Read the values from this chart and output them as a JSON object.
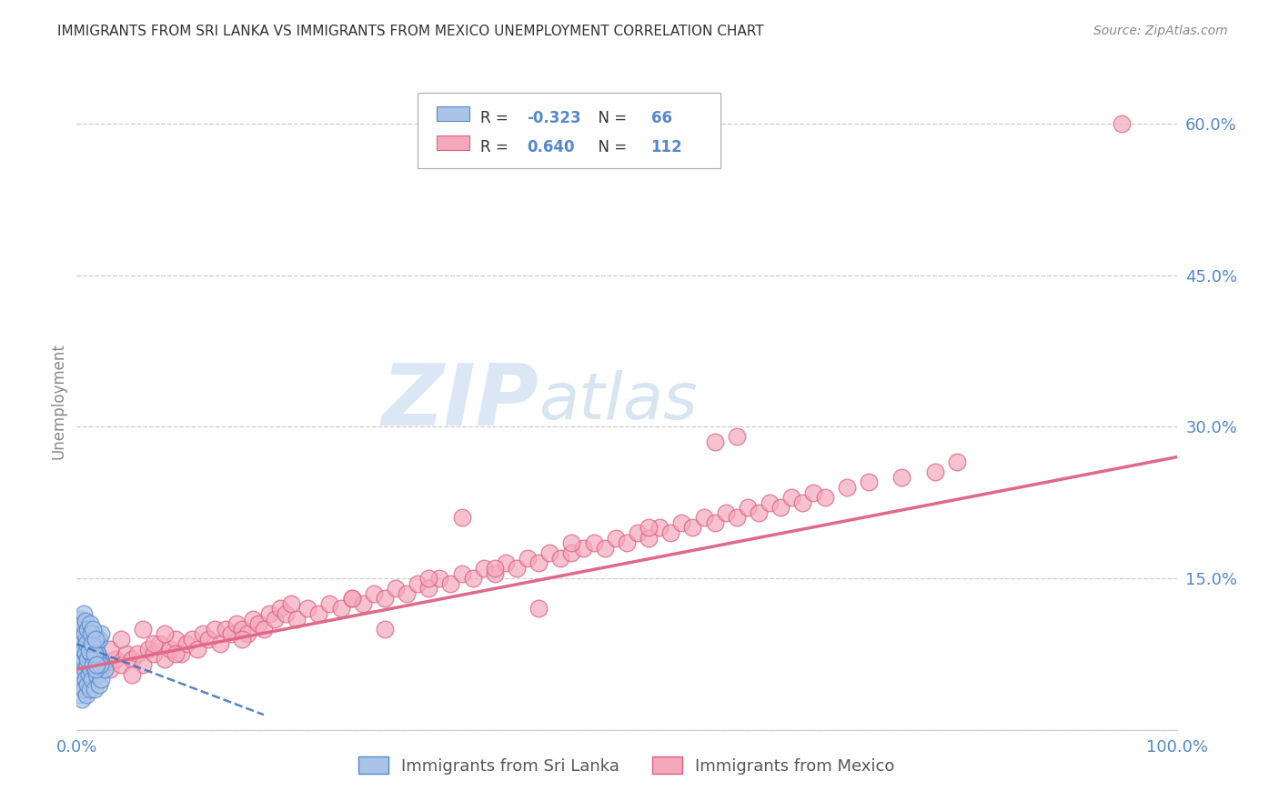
{
  "title": "IMMIGRANTS FROM SRI LANKA VS IMMIGRANTS FROM MEXICO UNEMPLOYMENT CORRELATION CHART",
  "source": "Source: ZipAtlas.com",
  "ylabel": "Unemployment",
  "xlim": [
    0.0,
    1.0
  ],
  "ylim": [
    0.0,
    0.65
  ],
  "y_ticks": [
    0.0,
    0.15,
    0.3,
    0.45,
    0.6
  ],
  "y_tick_labels": [
    "",
    "15.0%",
    "30.0%",
    "45.0%",
    "60.0%"
  ],
  "sri_lanka_color": "#aac4e8",
  "sri_lanka_edge": "#5588cc",
  "mexico_color": "#f5a8bc",
  "mexico_edge": "#d96080",
  "sri_lanka_R": -0.323,
  "sri_lanka_N": 66,
  "mexico_R": 0.64,
  "mexico_N": 112,
  "sri_lanka_line_color": "#4477bb",
  "mexico_line_color": "#e06888",
  "watermark_zip": "ZIP",
  "watermark_atlas": "atlas",
  "legend_label_sri": "Immigrants from Sri Lanka",
  "legend_label_mex": "Immigrants from Mexico",
  "background_color": "#ffffff",
  "grid_color": "#cccccc",
  "title_color": "#333333",
  "tick_color": "#5588cc",
  "sri_lanka_x": [
    0.002,
    0.003,
    0.004,
    0.005,
    0.005,
    0.006,
    0.006,
    0.007,
    0.007,
    0.008,
    0.008,
    0.009,
    0.009,
    0.01,
    0.01,
    0.011,
    0.011,
    0.012,
    0.013,
    0.014,
    0.015,
    0.016,
    0.017,
    0.018,
    0.019,
    0.02,
    0.021,
    0.022,
    0.023,
    0.025,
    0.003,
    0.004,
    0.005,
    0.006,
    0.007,
    0.008,
    0.009,
    0.01,
    0.011,
    0.012,
    0.013,
    0.014,
    0.015,
    0.016,
    0.017,
    0.018,
    0.019,
    0.02,
    0.021,
    0.022,
    0.003,
    0.004,
    0.005,
    0.006,
    0.007,
    0.008,
    0.009,
    0.01,
    0.011,
    0.012,
    0.013,
    0.014,
    0.015,
    0.016,
    0.017,
    0.018
  ],
  "sri_lanka_y": [
    0.035,
    0.055,
    0.045,
    0.065,
    0.03,
    0.07,
    0.04,
    0.06,
    0.08,
    0.05,
    0.075,
    0.035,
    0.085,
    0.045,
    0.065,
    0.055,
    0.075,
    0.04,
    0.06,
    0.05,
    0.07,
    0.04,
    0.065,
    0.055,
    0.075,
    0.045,
    0.07,
    0.05,
    0.065,
    0.06,
    0.095,
    0.085,
    0.1,
    0.08,
    0.095,
    0.075,
    0.09,
    0.07,
    0.095,
    0.085,
    0.075,
    0.09,
    0.065,
    0.095,
    0.06,
    0.085,
    0.075,
    0.09,
    0.065,
    0.095,
    0.11,
    0.1,
    0.105,
    0.115,
    0.095,
    0.108,
    0.085,
    0.1,
    0.078,
    0.105,
    0.095,
    0.085,
    0.1,
    0.075,
    0.09,
    0.065
  ],
  "mexico_x": [
    0.01,
    0.015,
    0.02,
    0.025,
    0.03,
    0.035,
    0.04,
    0.045,
    0.05,
    0.055,
    0.06,
    0.065,
    0.07,
    0.075,
    0.08,
    0.085,
    0.09,
    0.095,
    0.1,
    0.105,
    0.11,
    0.115,
    0.12,
    0.125,
    0.13,
    0.135,
    0.14,
    0.145,
    0.15,
    0.155,
    0.16,
    0.165,
    0.17,
    0.175,
    0.18,
    0.185,
    0.19,
    0.195,
    0.2,
    0.21,
    0.22,
    0.23,
    0.24,
    0.25,
    0.26,
    0.27,
    0.28,
    0.29,
    0.3,
    0.31,
    0.32,
    0.33,
    0.34,
    0.35,
    0.36,
    0.37,
    0.38,
    0.39,
    0.4,
    0.41,
    0.42,
    0.43,
    0.44,
    0.45,
    0.46,
    0.47,
    0.48,
    0.49,
    0.5,
    0.51,
    0.52,
    0.53,
    0.54,
    0.55,
    0.56,
    0.57,
    0.58,
    0.59,
    0.6,
    0.61,
    0.62,
    0.63,
    0.64,
    0.65,
    0.66,
    0.67,
    0.68,
    0.7,
    0.72,
    0.75,
    0.78,
    0.8,
    0.02,
    0.03,
    0.04,
    0.05,
    0.06,
    0.07,
    0.08,
    0.09,
    0.35,
    0.58,
    0.95,
    0.15,
    0.25,
    0.28,
    0.45,
    0.52,
    0.38,
    0.32,
    0.6,
    0.42
  ],
  "mexico_y": [
    0.05,
    0.06,
    0.055,
    0.065,
    0.06,
    0.07,
    0.065,
    0.075,
    0.07,
    0.075,
    0.065,
    0.08,
    0.075,
    0.085,
    0.07,
    0.08,
    0.09,
    0.075,
    0.085,
    0.09,
    0.08,
    0.095,
    0.09,
    0.1,
    0.085,
    0.1,
    0.095,
    0.105,
    0.1,
    0.095,
    0.11,
    0.105,
    0.1,
    0.115,
    0.11,
    0.12,
    0.115,
    0.125,
    0.11,
    0.12,
    0.115,
    0.125,
    0.12,
    0.13,
    0.125,
    0.135,
    0.13,
    0.14,
    0.135,
    0.145,
    0.14,
    0.15,
    0.145,
    0.155,
    0.15,
    0.16,
    0.155,
    0.165,
    0.16,
    0.17,
    0.165,
    0.175,
    0.17,
    0.175,
    0.18,
    0.185,
    0.18,
    0.19,
    0.185,
    0.195,
    0.19,
    0.2,
    0.195,
    0.205,
    0.2,
    0.21,
    0.205,
    0.215,
    0.21,
    0.22,
    0.215,
    0.225,
    0.22,
    0.23,
    0.225,
    0.235,
    0.23,
    0.24,
    0.245,
    0.25,
    0.255,
    0.265,
    0.07,
    0.08,
    0.09,
    0.055,
    0.1,
    0.085,
    0.095,
    0.075,
    0.21,
    0.285,
    0.6,
    0.09,
    0.13,
    0.1,
    0.185,
    0.2,
    0.16,
    0.15,
    0.29,
    0.12
  ]
}
